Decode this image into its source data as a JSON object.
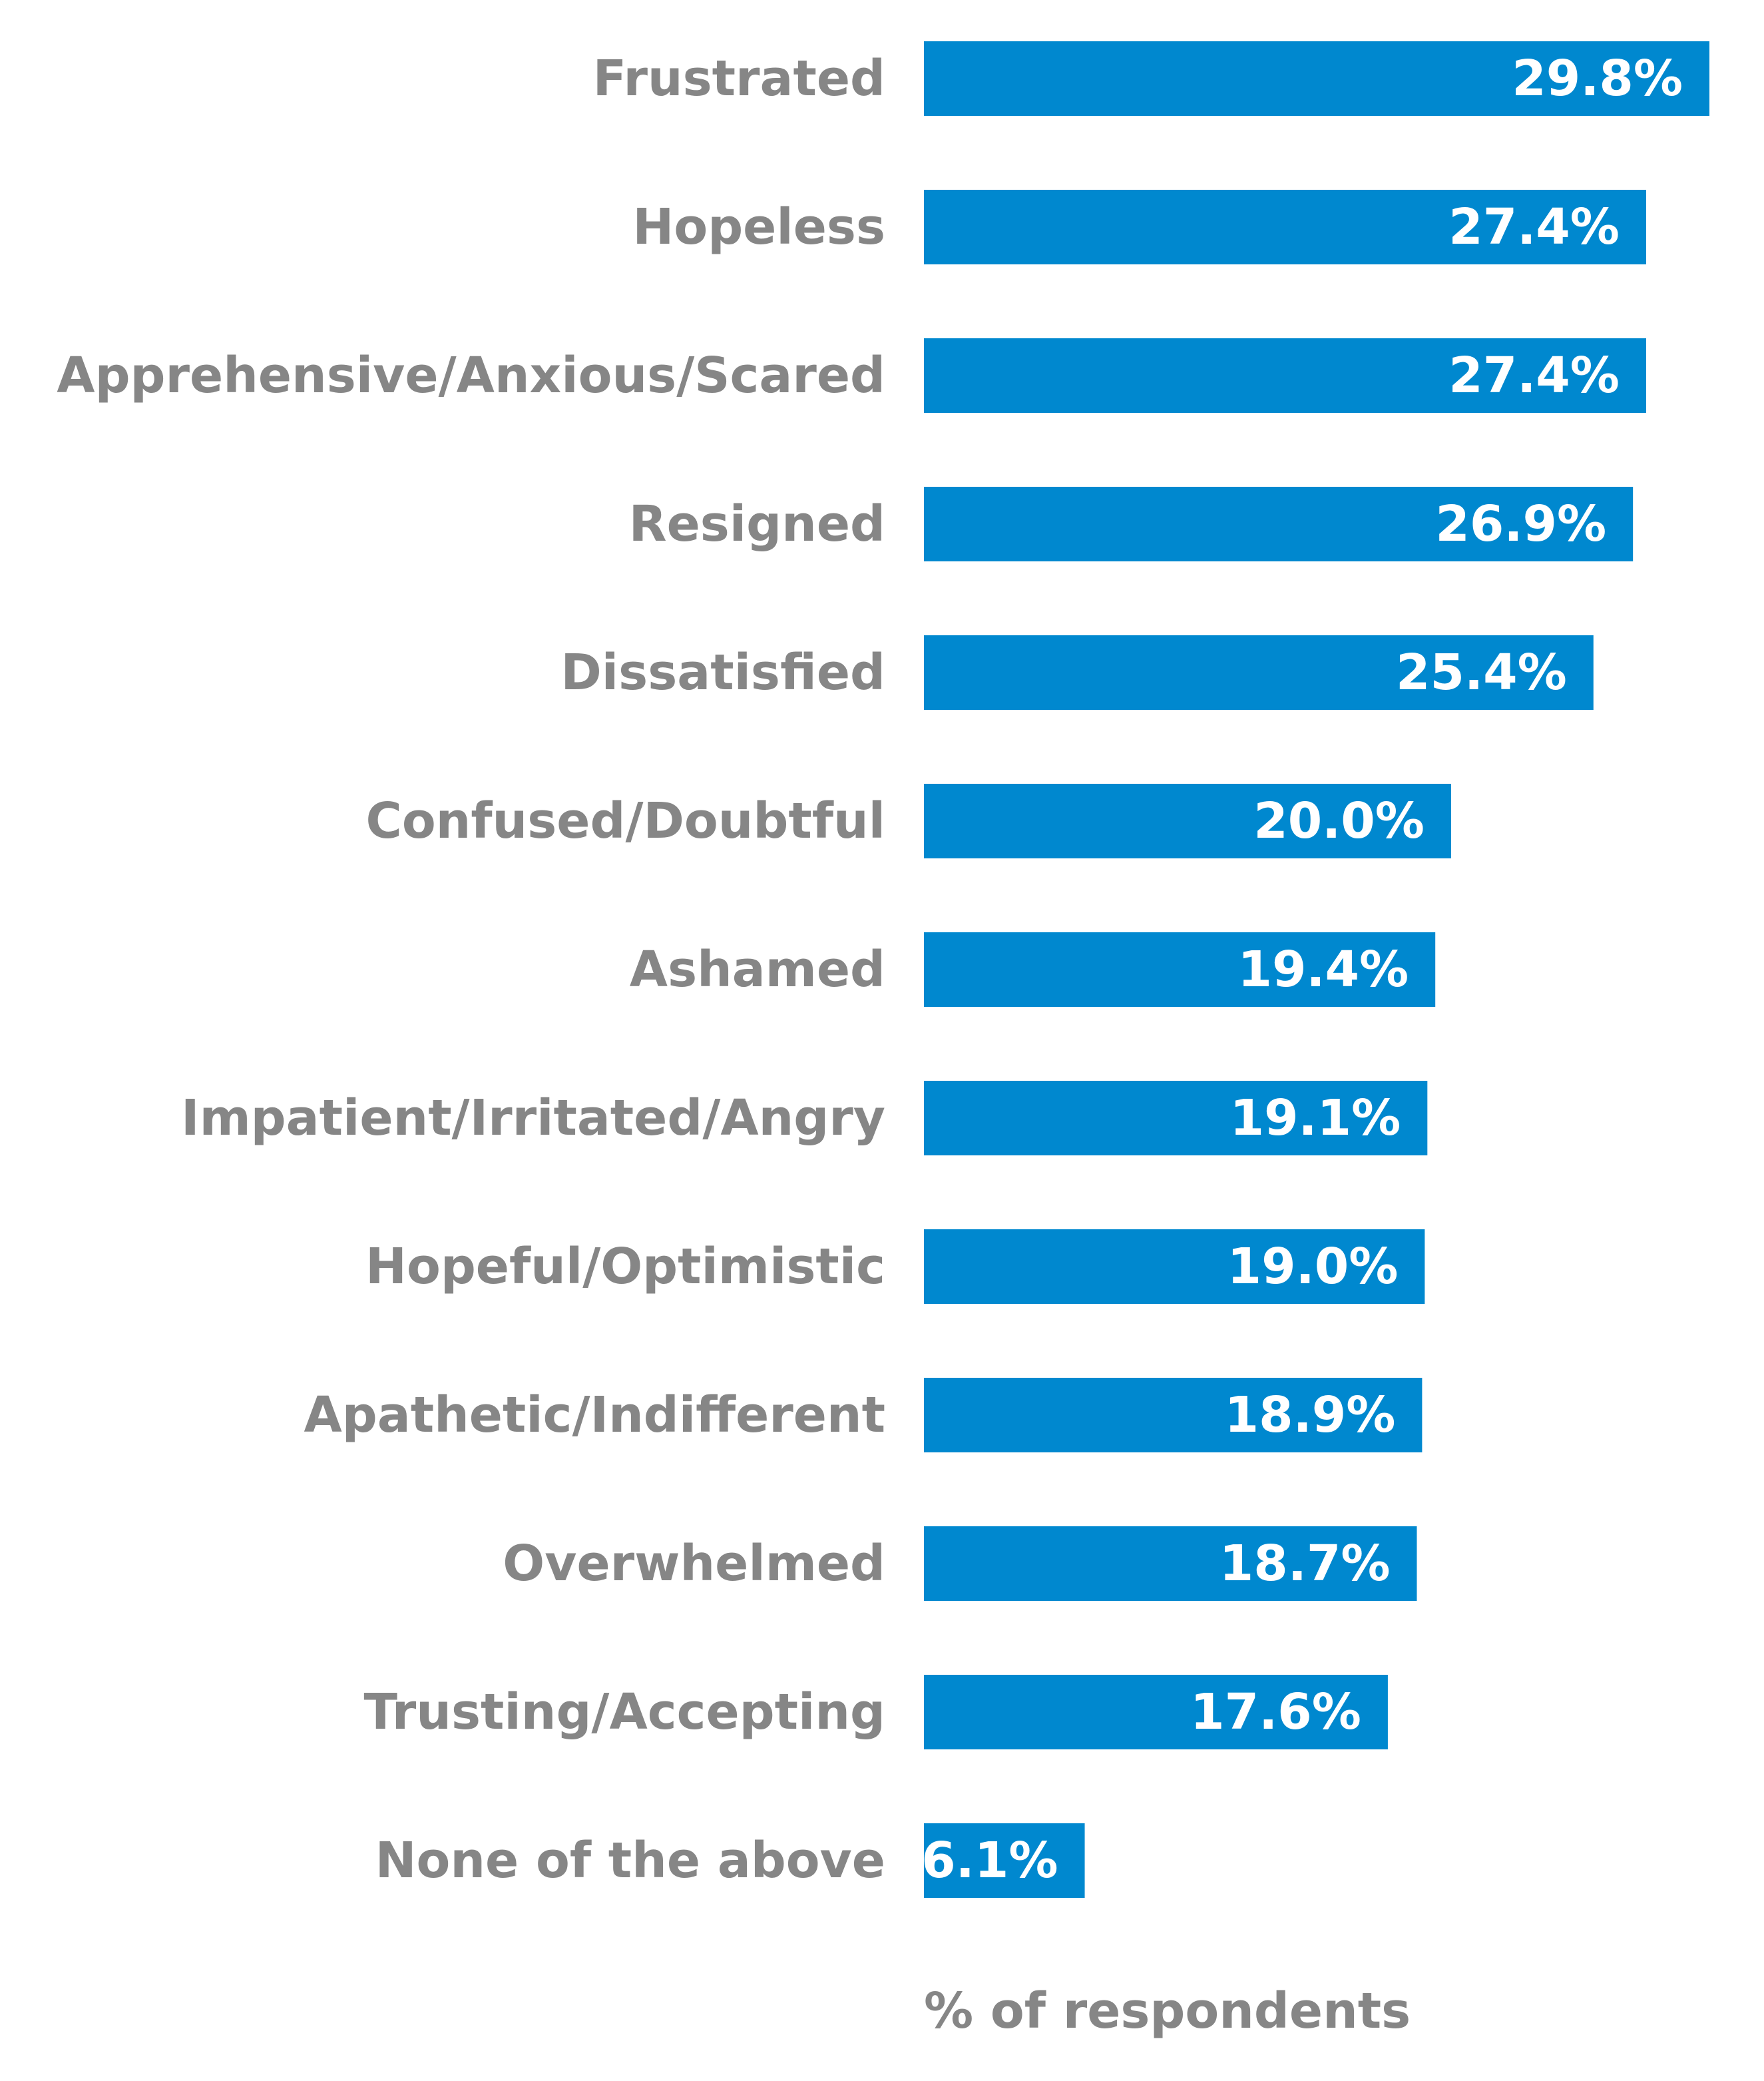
{
  "colors": {
    "bar": "#0088CF",
    "label_text": "#868686",
    "value_text": "#FFFFFF",
    "background": "#FFFFFF"
  },
  "chart_data": {
    "type": "bar",
    "orientation": "horizontal",
    "categories": [
      "Frustrated",
      "Hopeless",
      "Apprehensive/Anxious/Scared",
      "Resigned",
      "Dissatisfied",
      "Confused/Doubtful",
      "Ashamed",
      "Impatient/Irritated/Angry",
      "Hopeful/Optimistic",
      "Apathetic/Indifferent",
      "Overwhelmed",
      "Trusting/Accepting",
      "None of the above"
    ],
    "values": [
      29.8,
      27.4,
      27.4,
      26.9,
      25.4,
      20.0,
      19.4,
      19.1,
      19.0,
      18.9,
      18.7,
      17.6,
      6.1
    ],
    "value_labels": [
      "29.8%",
      "27.4%",
      "27.4%",
      "26.9%",
      "25.4%",
      "20.0%",
      "19.4%",
      "19.1%",
      "19.0%",
      "18.9%",
      "18.7%",
      "17.6%",
      "6.1%"
    ],
    "xlabel": "% of respondents",
    "xlim": [
      0,
      29.8
    ],
    "grid": false,
    "legend": "none"
  }
}
